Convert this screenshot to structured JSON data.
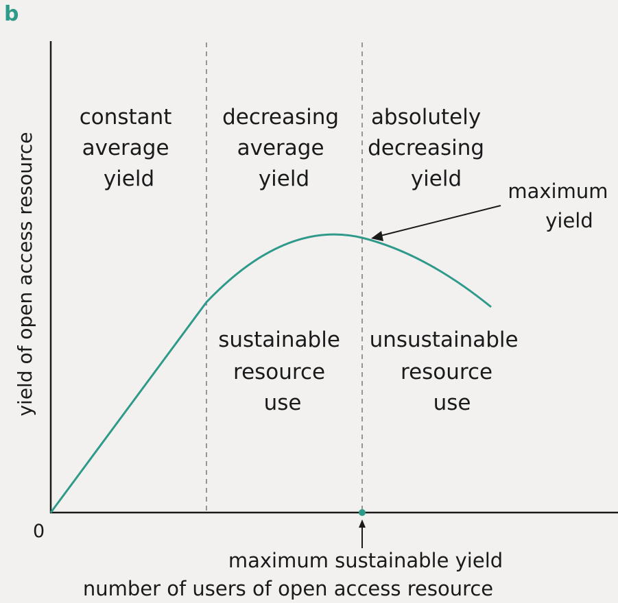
{
  "chart_data": {
    "type": "line",
    "panel_label": "b",
    "xlabel": "number of users of open access resource",
    "ylabel": "yield of open access resource",
    "origin_label": "0",
    "grid": false,
    "regions": [
      {
        "lines": [
          "constant",
          "average",
          "yield"
        ]
      },
      {
        "lines": [
          "decreasing",
          "average",
          "yield"
        ]
      },
      {
        "lines": [
          "absolutely",
          "decreasing",
          "yield"
        ]
      }
    ],
    "use_regions": [
      {
        "lines": [
          "sustainable",
          "resource",
          "use"
        ]
      },
      {
        "lines": [
          "unsustainable",
          "resource",
          "use"
        ]
      }
    ],
    "annotations": {
      "maximum_yield": [
        "maximum",
        "yield"
      ],
      "maximum_sustainable_yield": "maximum sustainable yield"
    },
    "colors": {
      "curve": "#2f9a8a",
      "panel_letter": "#2f9a8a",
      "axes": "#1a1a1a",
      "divider": "#777777",
      "background": "#f2f1f0"
    }
  }
}
